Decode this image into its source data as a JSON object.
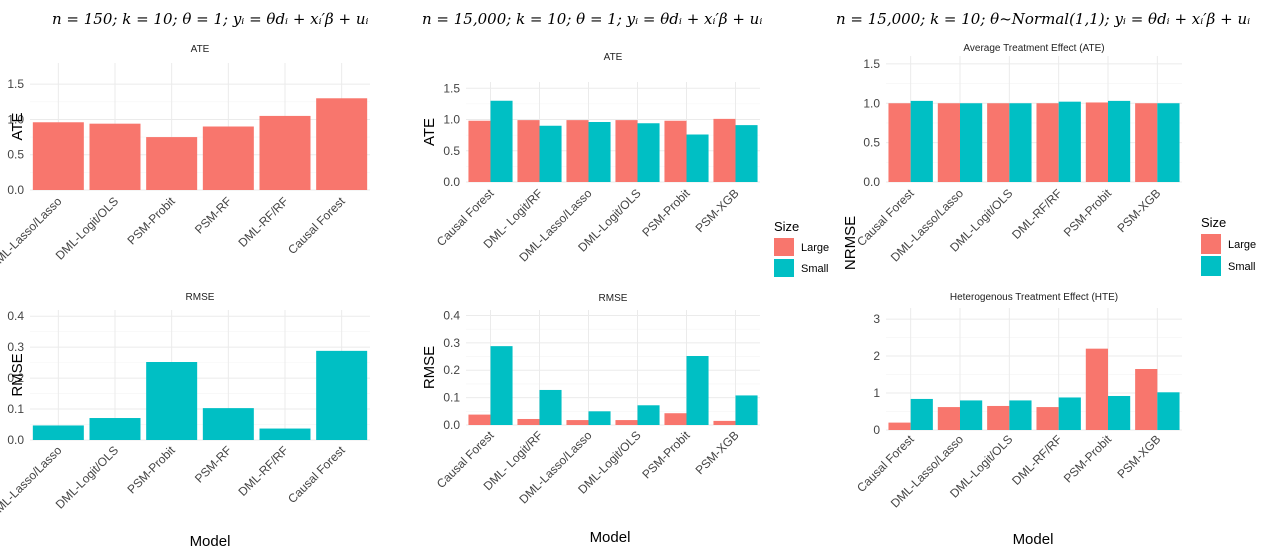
{
  "headings": [
    "n = 150; k = 10;  θ = 1;  yᵢ = θdᵢ +  xᵢ′β + uᵢ",
    "n = 15,000; k = 10;  θ = 1;  yᵢ = θdᵢ +  xᵢ′β + uᵢ",
    "n = 15,000; k = 10; θ~Normal(1,1);  yᵢ = θdᵢ +  xᵢ′β + uᵢ"
  ],
  "x_axis_label": "Model",
  "legend": {
    "title": "Size",
    "items": [
      {
        "label": "Large",
        "color": "#F8766D"
      },
      {
        "label": "Small",
        "color": "#00BFC4"
      }
    ]
  },
  "chart_data": [
    {
      "type": "bar",
      "title": "ATE",
      "ylabel": "ATE",
      "ylim": [
        0,
        1.8
      ],
      "yticks": [
        "0.0",
        "0.5",
        "1.0",
        "1.5"
      ],
      "categories": [
        "DML-Lasso/Lasso",
        "DML-Logit/OLS",
        "PSM-Probit",
        "PSM-RF",
        "DML-RF/RF",
        "Causal Forest"
      ],
      "series": [
        {
          "color": "#F8766D",
          "values": [
            0.96,
            0.94,
            0.75,
            0.9,
            1.05,
            1.3
          ]
        }
      ]
    },
    {
      "type": "bar",
      "title": "RMSE",
      "ylabel": "RMSE",
      "ylim": [
        0,
        0.42
      ],
      "yticks": [
        "0.0",
        "0.1",
        "0.2",
        "0.3",
        "0.4"
      ],
      "categories": [
        "DML-Lasso/Lasso",
        "DML-Logit/OLS",
        "PSM-Probit",
        "PSM-RF",
        "DML-RF/RF",
        "Causal Forest"
      ],
      "series": [
        {
          "color": "#00BFC4",
          "values": [
            0.047,
            0.071,
            0.252,
            0.103,
            0.037,
            0.288
          ]
        }
      ]
    },
    {
      "type": "bar",
      "title": "ATE",
      "ylabel": "ATE",
      "ylim": [
        0,
        1.6
      ],
      "yticks": [
        "0.0",
        "0.5",
        "1.0",
        "1.5"
      ],
      "categories": [
        "Causal Forest",
        "DML- Logit/RF",
        "DML-Lasso/Lasso",
        "DML-Logit/OLS",
        "PSM-Probit",
        "PSM-XGB"
      ],
      "series": [
        {
          "name": "Large",
          "color": "#F8766D",
          "values": [
            0.98,
            0.99,
            0.99,
            0.99,
            0.98,
            1.01
          ]
        },
        {
          "name": "Small",
          "color": "#00BFC4",
          "values": [
            1.3,
            0.9,
            0.96,
            0.94,
            0.76,
            0.91
          ]
        }
      ]
    },
    {
      "type": "bar",
      "title": "RMSE",
      "ylabel": "RMSE",
      "ylim": [
        0,
        0.42
      ],
      "yticks": [
        "0.0",
        "0.1",
        "0.2",
        "0.3",
        "0.4"
      ],
      "categories": [
        "Causal Forest",
        "DML- Logit/RF",
        "DML-Lasso/Lasso",
        "DML-Logit/OLS",
        "PSM-Probit",
        "PSM-XGB"
      ],
      "series": [
        {
          "name": "Large",
          "color": "#F8766D",
          "values": [
            0.038,
            0.022,
            0.018,
            0.018,
            0.043,
            0.015
          ]
        },
        {
          "name": "Small",
          "color": "#00BFC4",
          "values": [
            0.288,
            0.128,
            0.05,
            0.072,
            0.252,
            0.108
          ]
        }
      ]
    },
    {
      "type": "bar",
      "title": "Average Treatment Effect (ATE)",
      "ylabel": "",
      "ylim": [
        0,
        1.6
      ],
      "yticks": [
        "0.0",
        "0.5",
        "1.0",
        "1.5"
      ],
      "categories": [
        "Causal Forest",
        "DML-Lasso/Lasso",
        "DML-Logit/OLS",
        "DML-RF/RF",
        "PSM-Probit",
        "PSM-XGB"
      ],
      "series": [
        {
          "name": "Large",
          "color": "#F8766D",
          "values": [
            1.0,
            1.0,
            1.0,
            1.0,
            1.01,
            1.0
          ]
        },
        {
          "name": "Small",
          "color": "#00BFC4",
          "values": [
            1.03,
            1.0,
            1.0,
            1.02,
            1.03,
            1.0
          ]
        }
      ]
    },
    {
      "type": "bar",
      "title": "Heterogenous Treatment Effect (HTE)",
      "ylabel": "",
      "ylim": [
        0,
        3.3
      ],
      "yticks": [
        "0",
        "1",
        "2",
        "3"
      ],
      "categories": [
        "Causal Forest",
        "DML-Lasso/Lasso",
        "DML-Logit/OLS",
        "DML-RF/RF",
        "PSM-Probit",
        "PSM-XGB"
      ],
      "series": [
        {
          "name": "Large",
          "color": "#F8766D",
          "values": [
            0.2,
            0.62,
            0.65,
            0.62,
            2.2,
            1.65
          ]
        },
        {
          "name": "Small",
          "color": "#00BFC4",
          "values": [
            0.84,
            0.8,
            0.8,
            0.88,
            0.92,
            1.02
          ]
        }
      ]
    }
  ],
  "shared_ylabel_col3": "NRMSE"
}
